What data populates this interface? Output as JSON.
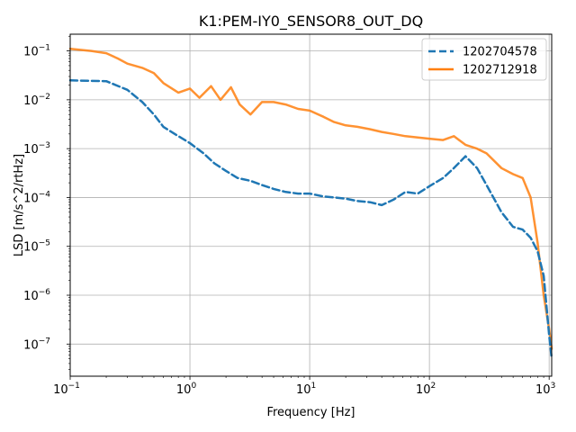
{
  "chart_data": {
    "type": "line",
    "title": "K1:PEM-IY0_SENSOR8_OUT_DQ",
    "xlabel": "Frequency [Hz]",
    "ylabel": "LSD [m/s^2/rtHz]",
    "xscale": "log",
    "yscale": "log",
    "xlim": [
      0.1,
      1050
    ],
    "ylim": [
      2.2e-08,
      0.22
    ],
    "grid": true,
    "legend": "top-right",
    "x_ticks": [
      {
        "value": 0.1,
        "base": "10",
        "exp": "−1"
      },
      {
        "value": 1,
        "base": "10",
        "exp": "0"
      },
      {
        "value": 10,
        "base": "10",
        "exp": "1"
      },
      {
        "value": 100,
        "base": "10",
        "exp": "2"
      },
      {
        "value": 1000,
        "base": "10",
        "exp": "3"
      }
    ],
    "y_ticks": [
      {
        "value": 1e-07,
        "base": "10",
        "exp": "−7"
      },
      {
        "value": 1e-06,
        "base": "10",
        "exp": "−6"
      },
      {
        "value": 1e-05,
        "base": "10",
        "exp": "−5"
      },
      {
        "value": 0.0001,
        "base": "10",
        "exp": "−4"
      },
      {
        "value": 0.001,
        "base": "10",
        "exp": "−3"
      },
      {
        "value": 0.01,
        "base": "10",
        "exp": "−2"
      },
      {
        "value": 0.1,
        "base": "10",
        "exp": "−1"
      }
    ],
    "series": [
      {
        "name": "1202704578",
        "color": "#1f77b4",
        "style": "dashed",
        "x": [
          0.1,
          0.2,
          0.3,
          0.4,
          0.5,
          0.6,
          0.8,
          1.0,
          1.3,
          1.6,
          2.0,
          2.5,
          3.2,
          4.0,
          5.0,
          6.3,
          8.0,
          10,
          13,
          16,
          20,
          25,
          32,
          40,
          50,
          63,
          80,
          100,
          130,
          160,
          200,
          250,
          300,
          400,
          500,
          600,
          700,
          800,
          900,
          1000,
          1050
        ],
        "y": [
          0.025,
          0.024,
          0.016,
          0.009,
          0.005,
          0.0028,
          0.0018,
          0.0013,
          0.0008,
          0.0005,
          0.00035,
          0.00025,
          0.00022,
          0.00018,
          0.00015,
          0.00013,
          0.00012,
          0.00012,
          0.000105,
          0.0001,
          9.5e-05,
          8.5e-05,
          8e-05,
          7e-05,
          9e-05,
          0.00013,
          0.00012,
          0.00017,
          0.00025,
          0.0004,
          0.0007,
          0.0004,
          0.00018,
          5e-05,
          2.5e-05,
          2.2e-05,
          1.5e-05,
          8e-06,
          2.5e-06,
          1.5e-07,
          5e-08
        ]
      },
      {
        "name": "1202712918",
        "color": "#ff7f0e",
        "style": "solid",
        "x": [
          0.1,
          0.15,
          0.2,
          0.25,
          0.3,
          0.4,
          0.5,
          0.6,
          0.8,
          1.0,
          1.2,
          1.5,
          1.8,
          2.2,
          2.6,
          3.2,
          4.0,
          5.0,
          6.3,
          8.0,
          10,
          13,
          16,
          20,
          25,
          32,
          40,
          50,
          63,
          80,
          100,
          130,
          160,
          200,
          250,
          300,
          400,
          500,
          600,
          700,
          800,
          900,
          1000,
          1050
        ],
        "y": [
          0.11,
          0.1,
          0.09,
          0.07,
          0.055,
          0.045,
          0.035,
          0.022,
          0.014,
          0.017,
          0.011,
          0.019,
          0.01,
          0.018,
          0.008,
          0.005,
          0.009,
          0.009,
          0.008,
          0.0065,
          0.006,
          0.0045,
          0.0035,
          0.003,
          0.0028,
          0.0025,
          0.0022,
          0.002,
          0.0018,
          0.0017,
          0.0016,
          0.0015,
          0.0018,
          0.0012,
          0.001,
          0.0008,
          0.0004,
          0.0003,
          0.00025,
          0.0001,
          1.2e-05,
          1e-06,
          2e-07,
          8e-08
        ]
      }
    ]
  }
}
